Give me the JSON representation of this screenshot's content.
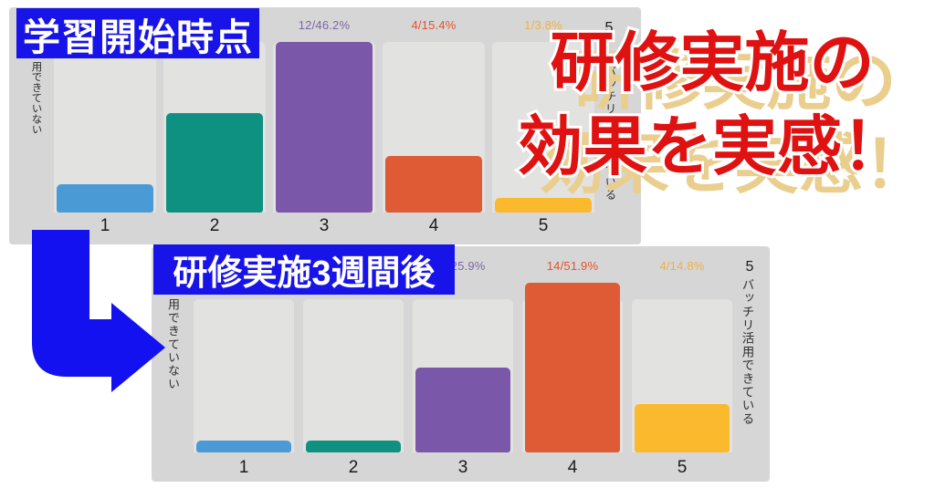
{
  "headline": {
    "line1": "研修実施の",
    "line2": "効果を実感！"
  },
  "banners": {
    "before": "学習開始時点",
    "after": "研修実施3週間後"
  },
  "icons": {
    "arrow": "elbow-down-right-arrow"
  },
  "colors": {
    "banner_blue": "#1813E8",
    "arrow_blue": "#1411F0",
    "headline_red": "#E01111",
    "headline_shadow": "#EACE8E",
    "panel_gray": "#D6D6D6",
    "track_gray": "#E2E2E0",
    "bars": [
      "#4A9BD5",
      "#0E9181",
      "#7A57A8",
      "#DE5B36",
      "#FBBA2E"
    ],
    "bar_label_colors": [
      "#4A9BD5",
      "#0E9181",
      "#7D66A9",
      "#E2532F",
      "#EFB042"
    ]
  },
  "chart_data": [
    {
      "type": "bar",
      "title": "学習開始時点",
      "categories": [
        "1",
        "2",
        "3",
        "4",
        "5"
      ],
      "values": [
        2,
        7,
        12,
        4,
        1
      ],
      "bar_labels": [
        "",
        "",
        "12/46.2%",
        "4/15.4%",
        "1/3.8%"
      ],
      "left_axis_label": "用できていない",
      "right_axis_number": "5",
      "right_axis_label": "バッチリ活用できている",
      "ylim": [
        0,
        12
      ],
      "legend": "none",
      "grid": false
    },
    {
      "type": "bar",
      "title": "研修実施3週間後",
      "categories": [
        "1",
        "2",
        "3",
        "4",
        "5"
      ],
      "values": [
        1,
        1,
        7,
        14,
        4
      ],
      "bar_labels": [
        "",
        "",
        "7/25.9%",
        "14/51.9%",
        "4/14.8%"
      ],
      "left_axis_label": "用できていない",
      "right_axis_number": "5",
      "right_axis_label": "バッチリ活用できている",
      "ylim": [
        0,
        14
      ],
      "legend": "none",
      "grid": false
    }
  ]
}
